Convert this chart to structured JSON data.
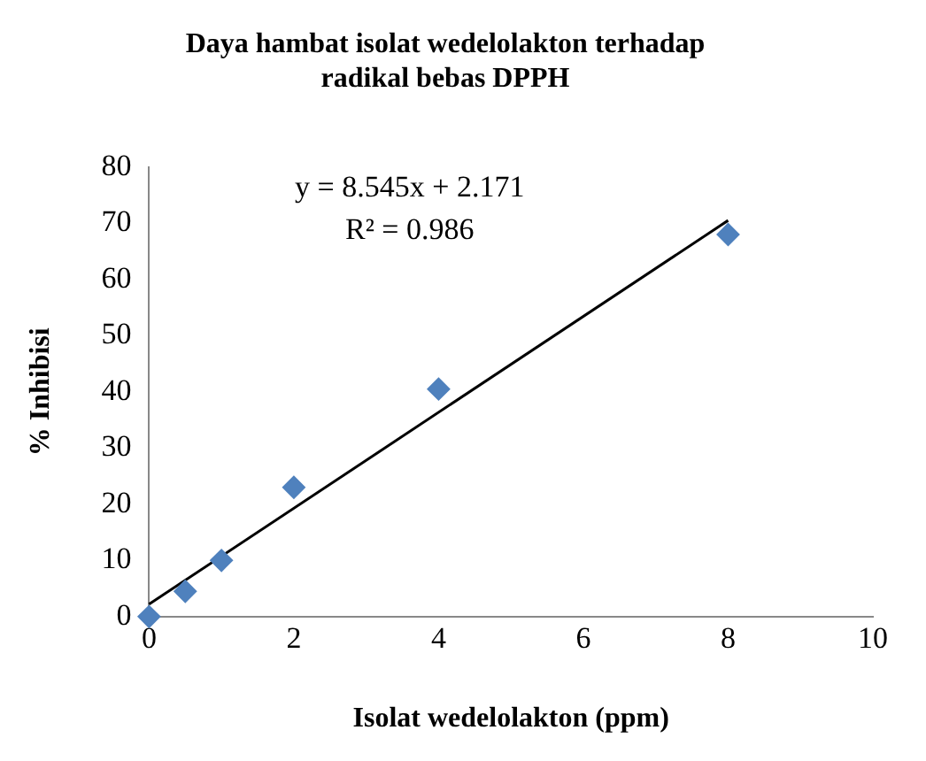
{
  "chart_data": {
    "type": "scatter",
    "title": "Daya hambat isolat wedelolakton terhadap radikal bebas DPPH",
    "xlabel": "Isolat wedelolakton (ppm)",
    "ylabel": "% Inhibisi",
    "x": [
      0,
      0.5,
      1,
      2,
      4,
      8
    ],
    "series": [
      {
        "type": "scatter",
        "color": "#4f81bd",
        "marker": "diamond",
        "values": [
          0,
          4.5,
          10,
          23,
          40.5,
          68
        ]
      },
      {
        "type": "line",
        "color": "#000000",
        "marker": "none",
        "x": [
          0,
          8
        ],
        "values": [
          2.2,
          70.5
        ]
      }
    ],
    "annotations": [
      "y = 8.545x + 2.171",
      "R² = 0.986"
    ],
    "xlim": [
      0,
      10
    ],
    "xticks": [
      0,
      2,
      4,
      6,
      8,
      10
    ],
    "ylim": [
      0,
      80
    ],
    "yticks": [
      0,
      10,
      20,
      30,
      40,
      50,
      60,
      70,
      80
    ],
    "grid": false,
    "legend": false
  }
}
